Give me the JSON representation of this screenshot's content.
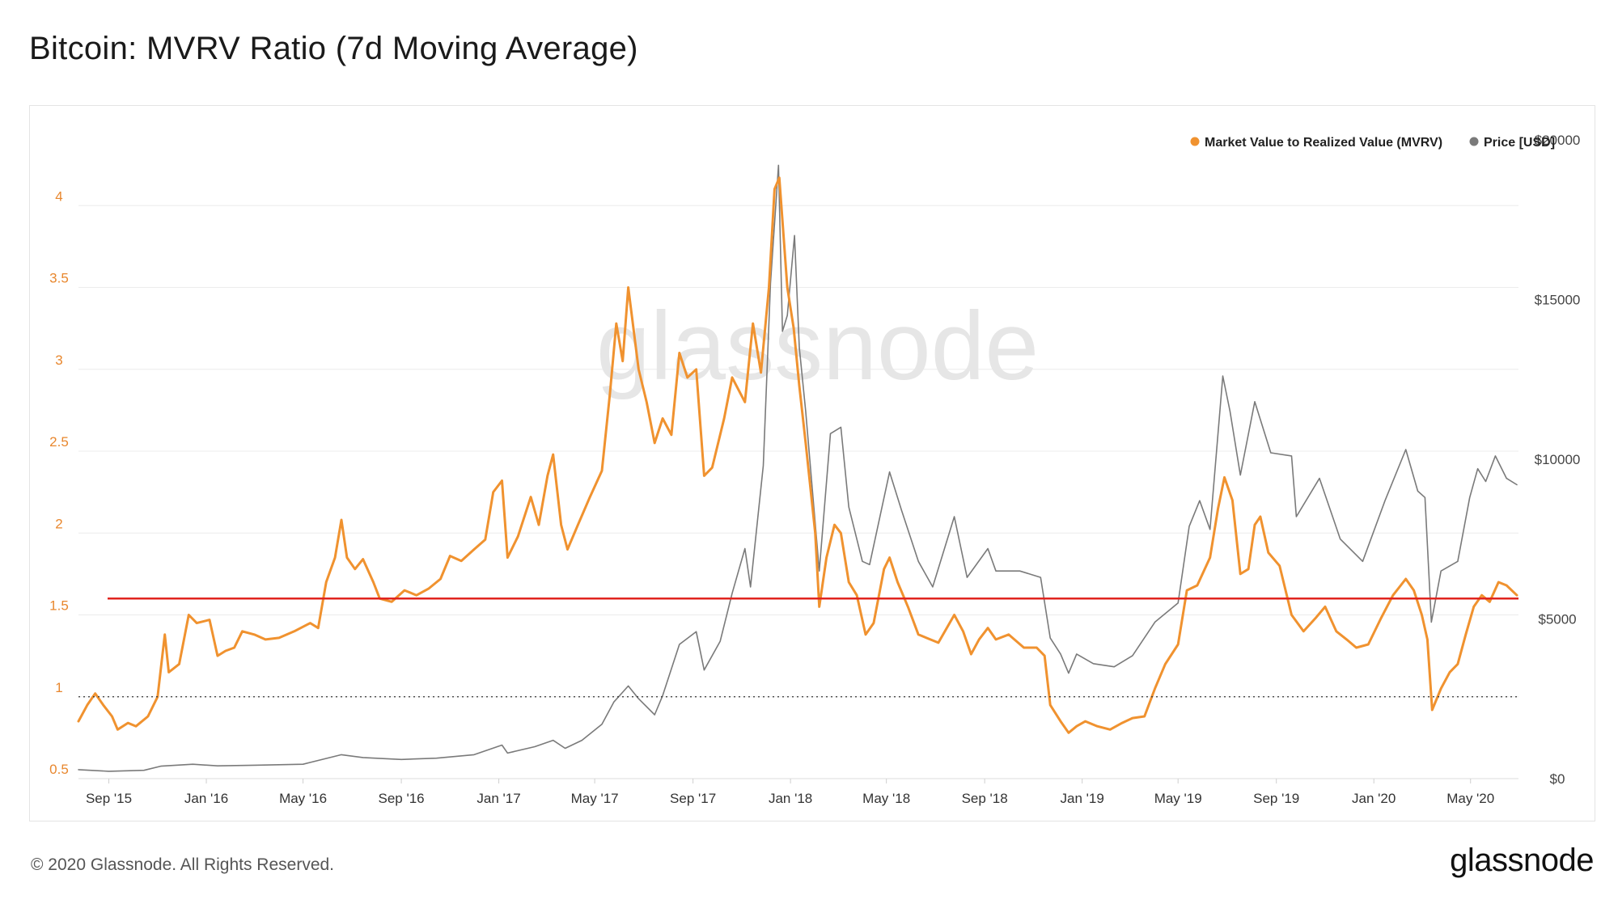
{
  "title": "Bitcoin: MVRV Ratio (7d Moving Average)",
  "footer": {
    "copyright": "© 2020 Glassnode. All Rights Reserved.",
    "logo": "glassnode"
  },
  "watermark": "glassnode",
  "chart_data": {
    "type": "line",
    "title": "Bitcoin: MVRV Ratio (7d Moving Average)",
    "x_range": [
      "2015-07-25",
      "2020-06-30"
    ],
    "x_ticks": [
      "Sep '15",
      "Jan '16",
      "May '16",
      "Sep '16",
      "Jan '17",
      "May '17",
      "Sep '17",
      "Jan '18",
      "May '18",
      "Sep '18",
      "Jan '19",
      "May '19",
      "Sep '19",
      "Jan '20",
      "May '20"
    ],
    "x_tick_dates": [
      "2015-09-01",
      "2016-01-01",
      "2016-05-01",
      "2016-09-01",
      "2017-01-01",
      "2017-05-01",
      "2017-09-01",
      "2018-01-01",
      "2018-05-01",
      "2018-09-01",
      "2019-01-01",
      "2019-05-01",
      "2019-09-01",
      "2020-01-01",
      "2020-05-01"
    ],
    "y_left": {
      "ticks": [
        "0.5",
        "1",
        "1.5",
        "2",
        "2.5",
        "3",
        "3.5",
        "4"
      ],
      "range": [
        0.5,
        4.5
      ],
      "color": "#e8872e"
    },
    "y_right": {
      "ticks": [
        "$0",
        "$5000",
        "$10000",
        "$15000",
        "$20000"
      ],
      "range": [
        0,
        20500
      ],
      "color": "#444444"
    },
    "grid": true,
    "legend_position": "top-right",
    "reference_lines": [
      {
        "value": 1.6,
        "axis": "left",
        "color": "#e0241f",
        "style": "solid"
      },
      {
        "value": 1.0,
        "axis": "left",
        "color": "#333333",
        "style": "dotted"
      }
    ],
    "series": [
      {
        "name": "Market Value to Realized Value (MVRV)",
        "axis": "left",
        "color": "#f0922f",
        "points": [
          [
            "2015-07-25",
            0.85
          ],
          [
            "2015-08-05",
            0.95
          ],
          [
            "2015-08-15",
            1.02
          ],
          [
            "2015-08-25",
            0.95
          ],
          [
            "2015-09-05",
            0.88
          ],
          [
            "2015-09-12",
            0.8
          ],
          [
            "2015-09-25",
            0.84
          ],
          [
            "2015-10-05",
            0.82
          ],
          [
            "2015-10-20",
            0.88
          ],
          [
            "2015-11-01",
            1.0
          ],
          [
            "2015-11-10",
            1.38
          ],
          [
            "2015-11-15",
            1.15
          ],
          [
            "2015-11-28",
            1.2
          ],
          [
            "2015-12-10",
            1.5
          ],
          [
            "2015-12-20",
            1.45
          ],
          [
            "2016-01-05",
            1.47
          ],
          [
            "2016-01-15",
            1.25
          ],
          [
            "2016-01-25",
            1.28
          ],
          [
            "2016-02-05",
            1.3
          ],
          [
            "2016-02-15",
            1.4
          ],
          [
            "2016-03-01",
            1.38
          ],
          [
            "2016-03-15",
            1.35
          ],
          [
            "2016-04-01",
            1.36
          ],
          [
            "2016-04-20",
            1.4
          ],
          [
            "2016-05-10",
            1.45
          ],
          [
            "2016-05-20",
            1.42
          ],
          [
            "2016-05-30",
            1.7
          ],
          [
            "2016-06-10",
            1.85
          ],
          [
            "2016-06-18",
            2.08
          ],
          [
            "2016-06-25",
            1.85
          ],
          [
            "2016-07-05",
            1.78
          ],
          [
            "2016-07-15",
            1.84
          ],
          [
            "2016-07-28",
            1.7
          ],
          [
            "2016-08-05",
            1.6
          ],
          [
            "2016-08-20",
            1.58
          ],
          [
            "2016-09-05",
            1.65
          ],
          [
            "2016-09-20",
            1.62
          ],
          [
            "2016-10-05",
            1.66
          ],
          [
            "2016-10-20",
            1.72
          ],
          [
            "2016-11-01",
            1.86
          ],
          [
            "2016-11-15",
            1.83
          ],
          [
            "2016-12-01",
            1.9
          ],
          [
            "2016-12-15",
            1.96
          ],
          [
            "2016-12-25",
            2.25
          ],
          [
            "2017-01-05",
            2.32
          ],
          [
            "2017-01-12",
            1.85
          ],
          [
            "2017-01-25",
            1.98
          ],
          [
            "2017-02-10",
            2.22
          ],
          [
            "2017-02-20",
            2.05
          ],
          [
            "2017-03-03",
            2.35
          ],
          [
            "2017-03-10",
            2.48
          ],
          [
            "2017-03-20",
            2.05
          ],
          [
            "2017-03-28",
            1.9
          ],
          [
            "2017-04-10",
            2.05
          ],
          [
            "2017-04-25",
            2.22
          ],
          [
            "2017-05-10",
            2.38
          ],
          [
            "2017-05-20",
            2.85
          ],
          [
            "2017-05-28",
            3.28
          ],
          [
            "2017-06-05",
            3.05
          ],
          [
            "2017-06-12",
            3.5
          ],
          [
            "2017-06-25",
            3.0
          ],
          [
            "2017-07-05",
            2.8
          ],
          [
            "2017-07-15",
            2.55
          ],
          [
            "2017-07-25",
            2.7
          ],
          [
            "2017-08-05",
            2.6
          ],
          [
            "2017-08-15",
            3.1
          ],
          [
            "2017-08-25",
            2.95
          ],
          [
            "2017-09-05",
            3.0
          ],
          [
            "2017-09-15",
            2.35
          ],
          [
            "2017-09-25",
            2.4
          ],
          [
            "2017-10-10",
            2.7
          ],
          [
            "2017-10-20",
            2.95
          ],
          [
            "2017-11-05",
            2.8
          ],
          [
            "2017-11-15",
            3.28
          ],
          [
            "2017-11-25",
            2.98
          ],
          [
            "2017-12-05",
            3.5
          ],
          [
            "2017-12-12",
            4.1
          ],
          [
            "2017-12-18",
            4.17
          ],
          [
            "2017-12-28",
            3.5
          ],
          [
            "2018-01-05",
            3.25
          ],
          [
            "2018-01-12",
            2.9
          ],
          [
            "2018-01-20",
            2.55
          ],
          [
            "2018-02-01",
            2.0
          ],
          [
            "2018-02-06",
            1.55
          ],
          [
            "2018-02-15",
            1.85
          ],
          [
            "2018-02-25",
            2.05
          ],
          [
            "2018-03-05",
            2.0
          ],
          [
            "2018-03-15",
            1.7
          ],
          [
            "2018-03-25",
            1.62
          ],
          [
            "2018-04-05",
            1.38
          ],
          [
            "2018-04-15",
            1.45
          ],
          [
            "2018-04-28",
            1.78
          ],
          [
            "2018-05-05",
            1.85
          ],
          [
            "2018-05-15",
            1.7
          ],
          [
            "2018-05-28",
            1.55
          ],
          [
            "2018-06-10",
            1.38
          ],
          [
            "2018-06-25",
            1.35
          ],
          [
            "2018-07-05",
            1.33
          ],
          [
            "2018-07-25",
            1.5
          ],
          [
            "2018-08-05",
            1.4
          ],
          [
            "2018-08-15",
            1.26
          ],
          [
            "2018-08-25",
            1.35
          ],
          [
            "2018-09-05",
            1.42
          ],
          [
            "2018-09-15",
            1.35
          ],
          [
            "2018-10-01",
            1.38
          ],
          [
            "2018-10-20",
            1.3
          ],
          [
            "2018-11-05",
            1.3
          ],
          [
            "2018-11-15",
            1.25
          ],
          [
            "2018-11-22",
            0.95
          ],
          [
            "2018-12-05",
            0.85
          ],
          [
            "2018-12-15",
            0.78
          ],
          [
            "2018-12-25",
            0.82
          ],
          [
            "2019-01-05",
            0.85
          ],
          [
            "2019-01-20",
            0.82
          ],
          [
            "2019-02-05",
            0.8
          ],
          [
            "2019-02-20",
            0.84
          ],
          [
            "2019-03-05",
            0.87
          ],
          [
            "2019-03-20",
            0.88
          ],
          [
            "2019-04-02",
            1.05
          ],
          [
            "2019-04-15",
            1.2
          ],
          [
            "2019-05-01",
            1.32
          ],
          [
            "2019-05-12",
            1.65
          ],
          [
            "2019-05-25",
            1.68
          ],
          [
            "2019-06-10",
            1.85
          ],
          [
            "2019-06-20",
            2.15
          ],
          [
            "2019-06-28",
            2.34
          ],
          [
            "2019-07-08",
            2.2
          ],
          [
            "2019-07-18",
            1.75
          ],
          [
            "2019-07-28",
            1.78
          ],
          [
            "2019-08-05",
            2.05
          ],
          [
            "2019-08-12",
            2.1
          ],
          [
            "2019-08-22",
            1.88
          ],
          [
            "2019-09-05",
            1.8
          ],
          [
            "2019-09-20",
            1.5
          ],
          [
            "2019-10-05",
            1.4
          ],
          [
            "2019-10-20",
            1.48
          ],
          [
            "2019-11-01",
            1.55
          ],
          [
            "2019-11-15",
            1.4
          ],
          [
            "2019-11-28",
            1.35
          ],
          [
            "2019-12-10",
            1.3
          ],
          [
            "2019-12-25",
            1.32
          ],
          [
            "2020-01-10",
            1.48
          ],
          [
            "2020-01-25",
            1.62
          ],
          [
            "2020-02-10",
            1.72
          ],
          [
            "2020-02-20",
            1.65
          ],
          [
            "2020-03-01",
            1.5
          ],
          [
            "2020-03-08",
            1.35
          ],
          [
            "2020-03-14",
            0.92
          ],
          [
            "2020-03-25",
            1.05
          ],
          [
            "2020-04-05",
            1.15
          ],
          [
            "2020-04-15",
            1.2
          ],
          [
            "2020-04-25",
            1.38
          ],
          [
            "2020-05-05",
            1.55
          ],
          [
            "2020-05-15",
            1.62
          ],
          [
            "2020-05-25",
            1.58
          ],
          [
            "2020-06-05",
            1.7
          ],
          [
            "2020-06-15",
            1.68
          ],
          [
            "2020-06-28",
            1.62
          ]
        ]
      },
      {
        "name": "Price [USD]",
        "axis": "right",
        "color": "#7a7a7a",
        "points": [
          [
            "2015-07-25",
            280
          ],
          [
            "2015-09-01",
            230
          ],
          [
            "2015-10-15",
            260
          ],
          [
            "2015-11-05",
            390
          ],
          [
            "2015-12-15",
            450
          ],
          [
            "2016-01-15",
            400
          ],
          [
            "2016-03-01",
            420
          ],
          [
            "2016-05-01",
            450
          ],
          [
            "2016-06-18",
            750
          ],
          [
            "2016-07-15",
            660
          ],
          [
            "2016-09-01",
            600
          ],
          [
            "2016-10-15",
            640
          ],
          [
            "2016-12-01",
            750
          ],
          [
            "2017-01-05",
            1050
          ],
          [
            "2017-01-12",
            800
          ],
          [
            "2017-02-15",
            1000
          ],
          [
            "2017-03-10",
            1200
          ],
          [
            "2017-03-25",
            950
          ],
          [
            "2017-04-15",
            1200
          ],
          [
            "2017-05-10",
            1700
          ],
          [
            "2017-05-25",
            2400
          ],
          [
            "2017-06-12",
            2900
          ],
          [
            "2017-06-25",
            2500
          ],
          [
            "2017-07-15",
            2000
          ],
          [
            "2017-07-25",
            2600
          ],
          [
            "2017-08-15",
            4200
          ],
          [
            "2017-09-05",
            4600
          ],
          [
            "2017-09-15",
            3400
          ],
          [
            "2017-10-05",
            4300
          ],
          [
            "2017-10-20",
            5800
          ],
          [
            "2017-11-05",
            7200
          ],
          [
            "2017-11-12",
            6000
          ],
          [
            "2017-11-28",
            9800
          ],
          [
            "2017-12-07",
            15500
          ],
          [
            "2017-12-17",
            19200
          ],
          [
            "2017-12-22",
            14000
          ],
          [
            "2017-12-28",
            14500
          ],
          [
            "2018-01-06",
            17000
          ],
          [
            "2018-01-12",
            13500
          ],
          [
            "2018-01-20",
            11500
          ],
          [
            "2018-02-06",
            6500
          ],
          [
            "2018-02-20",
            10800
          ],
          [
            "2018-03-05",
            11000
          ],
          [
            "2018-03-15",
            8500
          ],
          [
            "2018-04-01",
            6800
          ],
          [
            "2018-04-10",
            6700
          ],
          [
            "2018-05-05",
            9600
          ],
          [
            "2018-05-20",
            8400
          ],
          [
            "2018-06-10",
            6800
          ],
          [
            "2018-06-28",
            6000
          ],
          [
            "2018-07-25",
            8200
          ],
          [
            "2018-08-10",
            6300
          ],
          [
            "2018-09-05",
            7200
          ],
          [
            "2018-09-15",
            6500
          ],
          [
            "2018-10-15",
            6500
          ],
          [
            "2018-11-10",
            6300
          ],
          [
            "2018-11-22",
            4400
          ],
          [
            "2018-12-05",
            3900
          ],
          [
            "2018-12-15",
            3300
          ],
          [
            "2018-12-25",
            3900
          ],
          [
            "2019-01-15",
            3600
          ],
          [
            "2019-02-10",
            3500
          ],
          [
            "2019-03-05",
            3850
          ],
          [
            "2019-04-02",
            4900
          ],
          [
            "2019-05-01",
            5500
          ],
          [
            "2019-05-15",
            7900
          ],
          [
            "2019-05-28",
            8700
          ],
          [
            "2019-06-10",
            7800
          ],
          [
            "2019-06-26",
            12600
          ],
          [
            "2019-07-05",
            11500
          ],
          [
            "2019-07-18",
            9500
          ],
          [
            "2019-08-05",
            11800
          ],
          [
            "2019-08-25",
            10200
          ],
          [
            "2019-09-20",
            10100
          ],
          [
            "2019-09-26",
            8200
          ],
          [
            "2019-10-25",
            9400
          ],
          [
            "2019-11-20",
            7500
          ],
          [
            "2019-12-18",
            6800
          ],
          [
            "2020-01-15",
            8700
          ],
          [
            "2020-02-10",
            10300
          ],
          [
            "2020-02-25",
            9000
          ],
          [
            "2020-03-05",
            8800
          ],
          [
            "2020-03-13",
            4900
          ],
          [
            "2020-03-25",
            6500
          ],
          [
            "2020-04-15",
            6800
          ],
          [
            "2020-04-30",
            8800
          ],
          [
            "2020-05-10",
            9700
          ],
          [
            "2020-05-20",
            9300
          ],
          [
            "2020-06-01",
            10100
          ],
          [
            "2020-06-15",
            9400
          ],
          [
            "2020-06-28",
            9200
          ]
        ]
      }
    ]
  }
}
